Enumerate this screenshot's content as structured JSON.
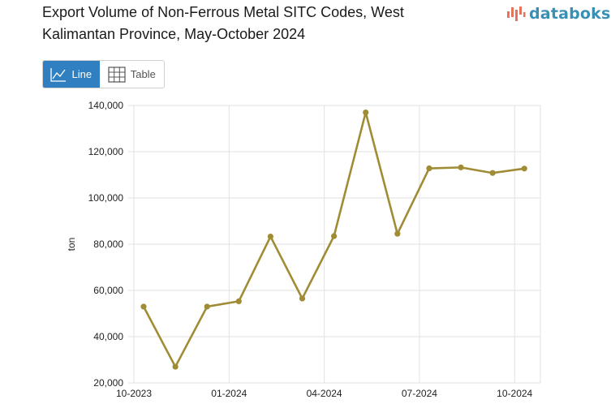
{
  "title": {
    "line1": "Export Volume of Non-Ferrous Metal SITC Codes, West",
    "line2": "Kalimantan Province, May-October 2024"
  },
  "logo": {
    "text": "databoks",
    "icon": "bar-chart-logo-icon"
  },
  "view_toggle": {
    "line_label": "Line",
    "table_label": "Table",
    "selected": "Line"
  },
  "colors": {
    "series": "#a08c35",
    "toggle_active": "#2f7fc1",
    "logo_text": "#3a8fb5",
    "logo_bars": "#e8735c",
    "grid": "#e2e2e2"
  },
  "chart_data": {
    "type": "line",
    "ylabel": "ton",
    "xlabel": "",
    "ylim": [
      20000,
      140000
    ],
    "yticks": [
      20000,
      40000,
      60000,
      80000,
      100000,
      120000,
      140000
    ],
    "ytick_labels": [
      "20,000",
      "40,000",
      "60,000",
      "80,000",
      "100,000",
      "120,000",
      "140,000"
    ],
    "x_tick_labels": [
      "10-2023",
      "01-2024",
      "04-2024",
      "07-2024",
      "10-2024"
    ],
    "x": [
      "10-2023",
      "11-2023",
      "12-2023",
      "01-2024",
      "02-2024",
      "03-2024",
      "04-2024",
      "05-2024",
      "06-2024",
      "07-2024",
      "08-2024",
      "09-2024",
      "10-2024"
    ],
    "series": [
      {
        "values": [
          53000,
          27000,
          53000,
          55300,
          83300,
          56500,
          83500,
          137000,
          84500,
          112800,
          113200,
          110800,
          112700
        ]
      }
    ],
    "grid": true,
    "legend": "none"
  }
}
